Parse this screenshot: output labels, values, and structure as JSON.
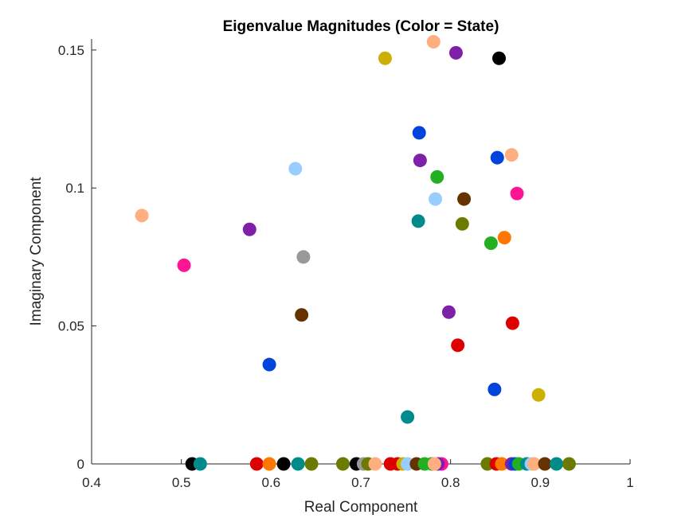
{
  "chart_data": {
    "type": "scatter",
    "title": "Eigenvalue Magnitudes (Color = State)",
    "xlabel": "Real Component",
    "ylabel": "Imaginary Component",
    "xlim": [
      0.4,
      1.0
    ],
    "ylim": [
      0,
      0.154
    ],
    "xticks": [
      "0.4",
      "0.5",
      "0.6",
      "0.7",
      "0.8",
      "0.9",
      "1"
    ],
    "xtick_values": [
      0.4,
      0.5,
      0.6,
      0.7,
      0.8,
      0.9,
      1.0
    ],
    "yticks": [
      "0",
      "0.05",
      "0.1",
      "0.15"
    ],
    "ytick_values": [
      0,
      0.05,
      0.1,
      0.15
    ],
    "grid": false,
    "points": [
      {
        "x": 0.456,
        "y": 0.09,
        "color": "#FFAF7F"
      },
      {
        "x": 0.503,
        "y": 0.072,
        "color": "#FF1493"
      },
      {
        "x": 0.576,
        "y": 0.085,
        "color": "#7E20A8"
      },
      {
        "x": 0.598,
        "y": 0.036,
        "color": "#0044DD"
      },
      {
        "x": 0.627,
        "y": 0.107,
        "color": "#99CCFF"
      },
      {
        "x": 0.634,
        "y": 0.054,
        "color": "#663300"
      },
      {
        "x": 0.636,
        "y": 0.075,
        "color": "#999999"
      },
      {
        "x": 0.727,
        "y": 0.147,
        "color": "#CCB000"
      },
      {
        "x": 0.752,
        "y": 0.017,
        "color": "#008B8B"
      },
      {
        "x": 0.764,
        "y": 0.088,
        "color": "#008B8B"
      },
      {
        "x": 0.765,
        "y": 0.12,
        "color": "#0044DD"
      },
      {
        "x": 0.766,
        "y": 0.11,
        "color": "#7E20A8"
      },
      {
        "x": 0.781,
        "y": 0.153,
        "color": "#FFAF7F"
      },
      {
        "x": 0.783,
        "y": 0.096,
        "color": "#99CCFF"
      },
      {
        "x": 0.785,
        "y": 0.104,
        "color": "#22B022"
      },
      {
        "x": 0.798,
        "y": 0.055,
        "color": "#7E20A8"
      },
      {
        "x": 0.806,
        "y": 0.149,
        "color": "#7E20A8"
      },
      {
        "x": 0.808,
        "y": 0.043,
        "color": "#DD0000"
      },
      {
        "x": 0.813,
        "y": 0.087,
        "color": "#6B7A00"
      },
      {
        "x": 0.815,
        "y": 0.096,
        "color": "#663300"
      },
      {
        "x": 0.845,
        "y": 0.08,
        "color": "#22B022"
      },
      {
        "x": 0.849,
        "y": 0.027,
        "color": "#0044DD"
      },
      {
        "x": 0.852,
        "y": 0.111,
        "color": "#0044DD"
      },
      {
        "x": 0.854,
        "y": 0.147,
        "color": "#000000"
      },
      {
        "x": 0.86,
        "y": 0.082,
        "color": "#FF7700"
      },
      {
        "x": 0.868,
        "y": 0.112,
        "color": "#FFAF7F"
      },
      {
        "x": 0.869,
        "y": 0.051,
        "color": "#DD0000"
      },
      {
        "x": 0.874,
        "y": 0.098,
        "color": "#FF1493"
      },
      {
        "x": 0.898,
        "y": 0.025,
        "color": "#CCB000"
      },
      {
        "x": 0.512,
        "y": 0,
        "color": "#000000"
      },
      {
        "x": 0.521,
        "y": 0,
        "color": "#008B8B"
      },
      {
        "x": 0.584,
        "y": 0,
        "color": "#DD0000"
      },
      {
        "x": 0.598,
        "y": 0,
        "color": "#FF7700"
      },
      {
        "x": 0.614,
        "y": 0,
        "color": "#000000"
      },
      {
        "x": 0.63,
        "y": 0,
        "color": "#008B8B"
      },
      {
        "x": 0.645,
        "y": 0,
        "color": "#6B7A00"
      },
      {
        "x": 0.68,
        "y": 0,
        "color": "#6B7A00"
      },
      {
        "x": 0.695,
        "y": 0,
        "color": "#000000"
      },
      {
        "x": 0.703,
        "y": 0,
        "color": "#999999"
      },
      {
        "x": 0.708,
        "y": 0,
        "color": "#6B7A00"
      },
      {
        "x": 0.716,
        "y": 0,
        "color": "#FFAF7F"
      },
      {
        "x": 0.733,
        "y": 0,
        "color": "#DD0000"
      },
      {
        "x": 0.741,
        "y": 0,
        "color": "#DD0000"
      },
      {
        "x": 0.747,
        "y": 0,
        "color": "#CCB000"
      },
      {
        "x": 0.752,
        "y": 0,
        "color": "#99CCFF"
      },
      {
        "x": 0.762,
        "y": 0,
        "color": "#663300"
      },
      {
        "x": 0.771,
        "y": 0,
        "color": "#22B022"
      },
      {
        "x": 0.779,
        "y": 0,
        "color": "#22B022"
      },
      {
        "x": 0.79,
        "y": 0,
        "color": "#FF1493"
      },
      {
        "x": 0.786,
        "y": 0,
        "color": "#7E20A8"
      },
      {
        "x": 0.782,
        "y": 0,
        "color": "#FFAF7F"
      },
      {
        "x": 0.841,
        "y": 0,
        "color": "#6B7A00"
      },
      {
        "x": 0.851,
        "y": 0,
        "color": "#DD0000"
      },
      {
        "x": 0.857,
        "y": 0,
        "color": "#FF7700"
      },
      {
        "x": 0.868,
        "y": 0,
        "color": "#7E20A8"
      },
      {
        "x": 0.872,
        "y": 0,
        "color": "#0044DD"
      },
      {
        "x": 0.876,
        "y": 0,
        "color": "#22B022"
      },
      {
        "x": 0.885,
        "y": 0,
        "color": "#008B8B"
      },
      {
        "x": 0.89,
        "y": 0,
        "color": "#99CCFF"
      },
      {
        "x": 0.893,
        "y": 0,
        "color": "#FFAF7F"
      },
      {
        "x": 0.905,
        "y": 0,
        "color": "#663300"
      },
      {
        "x": 0.918,
        "y": 0,
        "color": "#008B8B"
      },
      {
        "x": 0.932,
        "y": 0,
        "color": "#6B7A00"
      }
    ]
  }
}
